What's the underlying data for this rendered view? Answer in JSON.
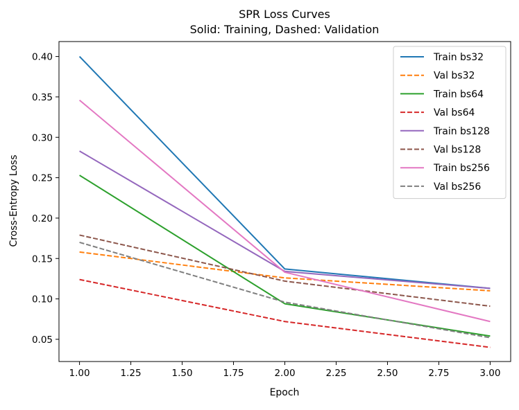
{
  "chart_data": {
    "type": "line",
    "title": "SPR Loss Curves",
    "subtitle": "Solid: Training, Dashed: Validation",
    "xlabel": "Epoch",
    "ylabel": "Cross-Entropy Loss",
    "x": [
      1,
      2,
      3
    ],
    "xlim": [
      0.9,
      3.1
    ],
    "ylim": [
      0.0225,
      0.4185
    ],
    "xticks": [
      "1.00",
      "1.25",
      "1.50",
      "1.75",
      "2.00",
      "2.25",
      "2.50",
      "2.75",
      "3.00"
    ],
    "xtick_values": [
      1.0,
      1.25,
      1.5,
      1.75,
      2.0,
      2.25,
      2.5,
      2.75,
      3.0
    ],
    "yticks": [
      "0.05",
      "0.10",
      "0.15",
      "0.20",
      "0.25",
      "0.30",
      "0.35",
      "0.40"
    ],
    "ytick_values": [
      0.05,
      0.1,
      0.15,
      0.2,
      0.25,
      0.3,
      0.35,
      0.4
    ],
    "grid": false,
    "legend_position": "top-right",
    "series": [
      {
        "name": "Train bs32",
        "values": [
          0.4,
          0.137,
          0.113
        ],
        "color": "#1f77b4",
        "style": "solid"
      },
      {
        "name": "Val bs32",
        "values": [
          0.158,
          0.126,
          0.11
        ],
        "color": "#ff7f0e",
        "style": "dashed"
      },
      {
        "name": "Train bs64",
        "values": [
          0.253,
          0.094,
          0.054
        ],
        "color": "#2ca02c",
        "style": "solid"
      },
      {
        "name": "Val bs64",
        "values": [
          0.124,
          0.072,
          0.04
        ],
        "color": "#d62728",
        "style": "dashed"
      },
      {
        "name": "Train bs128",
        "values": [
          0.283,
          0.134,
          0.113
        ],
        "color": "#9467bd",
        "style": "solid"
      },
      {
        "name": "Val bs128",
        "values": [
          0.179,
          0.122,
          0.091
        ],
        "color": "#8c564b",
        "style": "dashed"
      },
      {
        "name": "Train bs256",
        "values": [
          0.346,
          0.133,
          0.072
        ],
        "color": "#e377c2",
        "style": "solid"
      },
      {
        "name": "Val bs256",
        "values": [
          0.17,
          0.096,
          0.052
        ],
        "color": "#7f7f7f",
        "style": "dashed"
      }
    ]
  }
}
